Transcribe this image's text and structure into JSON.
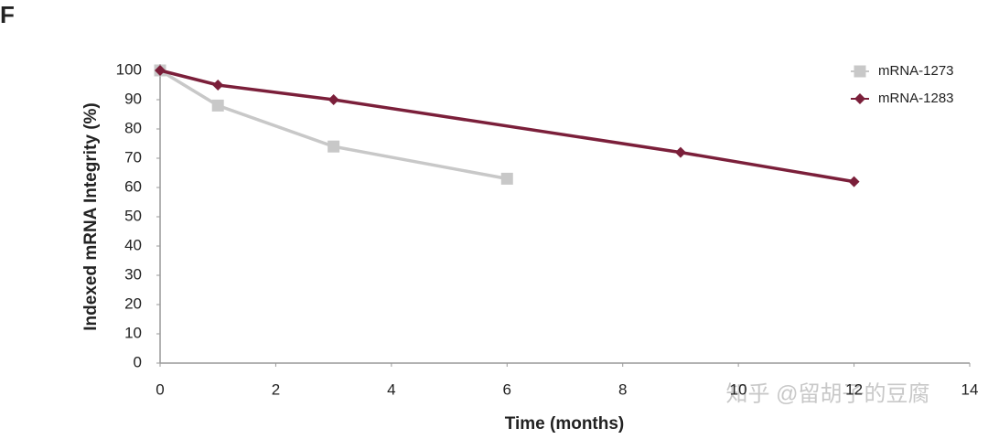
{
  "panel_label": "F",
  "watermark": "知乎 @留胡子的豆腐",
  "chart_data": {
    "type": "line",
    "x_label": "Time (months)",
    "y_label": "Indexed mRNA Integrity (%)",
    "xlim": [
      0,
      14
    ],
    "xticks": [
      0,
      2,
      4,
      6,
      8,
      10,
      12,
      14
    ],
    "ylim": [
      0,
      100
    ],
    "yticks": [
      0,
      10,
      20,
      30,
      40,
      50,
      60,
      70,
      80,
      90,
      100
    ],
    "grid": false,
    "legend": "upper right",
    "series": [
      {
        "name": "mRNA-1273",
        "color": "#c8c8c8",
        "marker": "square",
        "x": [
          0,
          1,
          3,
          6
        ],
        "values": [
          100,
          88,
          74,
          63
        ]
      },
      {
        "name": "mRNA-1283",
        "color": "#7b1f3a",
        "marker": "diamond",
        "x": [
          0,
          1,
          3,
          9,
          12
        ],
        "values": [
          100,
          95,
          90,
          72,
          62
        ]
      }
    ]
  }
}
